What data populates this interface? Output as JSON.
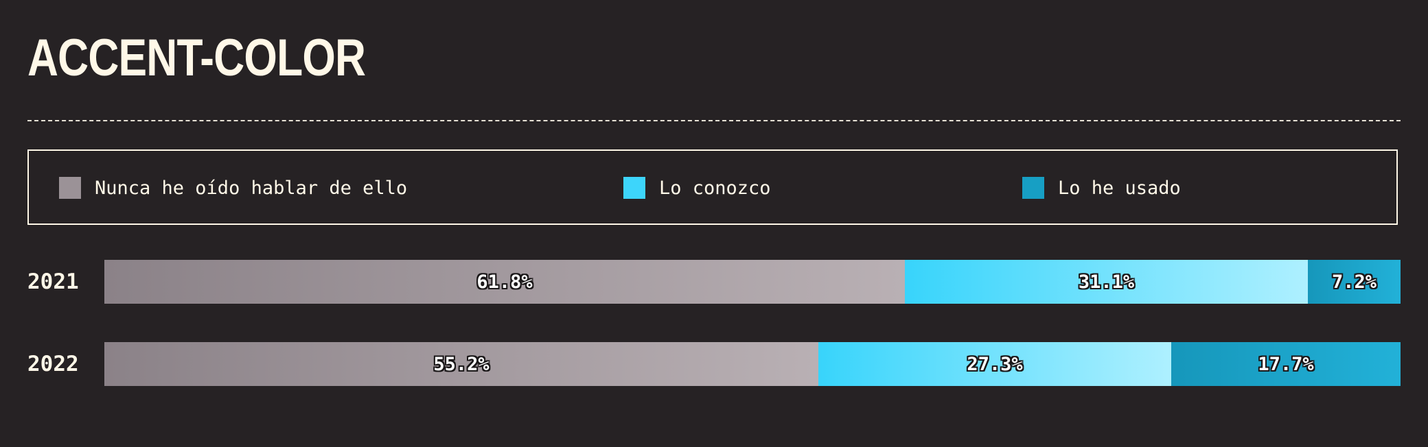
{
  "title": "ACCENT-COLOR",
  "chart_data": {
    "type": "bar",
    "orientation": "horizontal",
    "stacked": true,
    "normalized_to": 100,
    "title": "ACCENT-COLOR",
    "categories": [
      "2021",
      "2022"
    ],
    "series": [
      {
        "name": "Nunca he oído hablar de ello",
        "color": "#9b9297",
        "values": [
          61.8,
          55.2
        ],
        "labels": [
          "61.8%",
          "55.2%"
        ]
      },
      {
        "name": "Lo conozco",
        "color": "#3dd5fb",
        "values": [
          31.1,
          27.3
        ],
        "labels": [
          "31.1%",
          "27.3%"
        ]
      },
      {
        "name": "Lo he usado",
        "color": "#179fc4",
        "values": [
          7.2,
          17.7
        ],
        "labels": [
          "7.2%",
          "17.7%"
        ]
      }
    ],
    "legend_position": "top",
    "grid": false
  },
  "colors": {
    "background": "#262224",
    "text": "#fff8e8"
  }
}
